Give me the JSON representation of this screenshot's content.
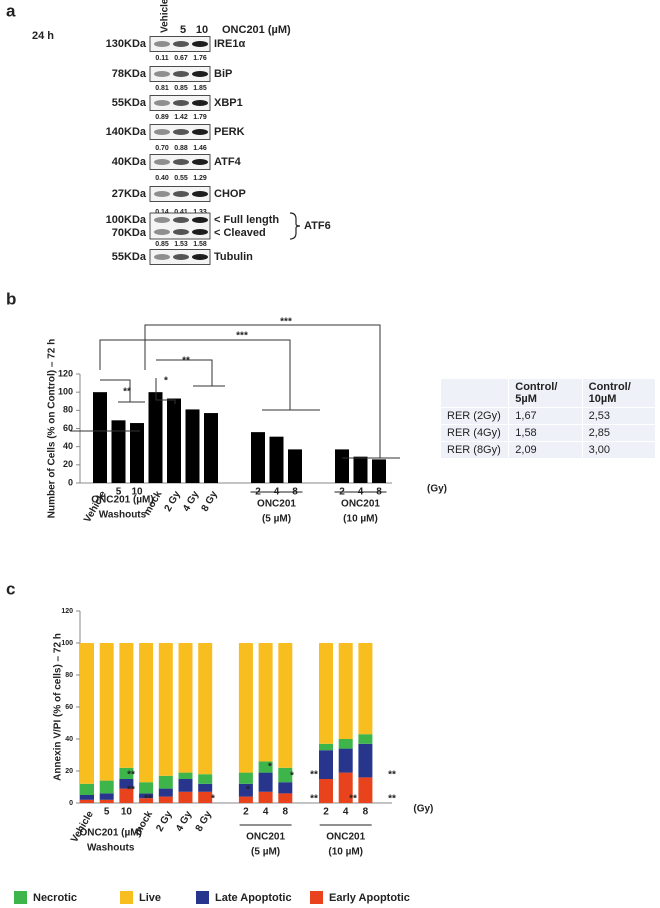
{
  "panel_labels": [
    "a",
    "b",
    "c"
  ],
  "blot": {
    "timepoint": "24 h",
    "lanes": [
      "Vehicle",
      "5",
      "10"
    ],
    "treatment": "ONC201 (µM)",
    "rows": [
      {
        "kda": "130KDa",
        "name": "IRE1α",
        "quant": [
          "0.11",
          "0.67",
          "1.76"
        ]
      },
      {
        "kda": "78KDa",
        "name": "BiP",
        "quant": [
          "0.81",
          "0.85",
          "1.85"
        ]
      },
      {
        "kda": "55KDa",
        "name": "XBP1",
        "quant": [
          "0.89",
          "1.42",
          "1.79"
        ]
      },
      {
        "kda": "140KDa",
        "name": "PERK",
        "quant": [
          "0.70",
          "0.88",
          "1.46"
        ]
      },
      {
        "kda": "40KDa",
        "name": "ATF4",
        "quant": [
          "0.40",
          "0.55",
          "1.29"
        ]
      },
      {
        "kda": "27KDa",
        "name": "CHOP",
        "quant": [
          "0.14",
          "0.41",
          "1.33"
        ]
      },
      {
        "kda": "100KDa",
        "name": "< Full length",
        "kda2": "70KDa",
        "name2": "< Cleaved",
        "group": "ATF6",
        "quant": [
          "0.85",
          "1.53",
          "1.58"
        ]
      },
      {
        "kda": "55KDa",
        "name": "Tubulin"
      }
    ]
  },
  "chart_data": [
    {
      "type": "bar",
      "ylabel": "Number of Cells (% on Control) – 72 h",
      "categories": [
        "Vehicle",
        "5",
        "10",
        "mock",
        "2 Gy",
        "4 Gy",
        "8 Gy",
        "2",
        "4",
        "8",
        "2",
        "4",
        "8"
      ],
      "values": [
        100,
        69,
        66,
        100,
        93,
        81,
        77,
        56,
        51,
        37,
        37,
        29,
        26
      ],
      "color": "#000000",
      "ylim": [
        0,
        120
      ],
      "yticks": [
        0,
        20,
        40,
        60,
        80,
        100,
        120
      ],
      "grid": false,
      "groups": [
        "ONC201 (µM)",
        "Washouts",
        "ONC201",
        "(5 µM)",
        "ONC201",
        "(10 µM)"
      ],
      "xunit": "(Gy)",
      "annotations": [
        "**",
        "*",
        "**",
        "***",
        "***"
      ]
    },
    {
      "type": "stacked_bar",
      "ylabel": "Annexin V/PI (% of cells) – 72 h",
      "categories": [
        "Vehicle",
        "5",
        "10",
        "mock",
        "2 Gy",
        "4 Gy",
        "8 Gy",
        "2",
        "4",
        "8",
        "2",
        "4",
        "8"
      ],
      "series": [
        {
          "name": "Early Apoptotic",
          "color": "#e8431c",
          "values": [
            2,
            2,
            9,
            3,
            4,
            7,
            7,
            4,
            7,
            6,
            15,
            19,
            16
          ]
        },
        {
          "name": "Late Apoptotic",
          "color": "#27368c",
          "values": [
            3,
            4,
            6,
            3,
            5,
            8,
            5,
            8,
            12,
            7,
            18,
            15,
            21
          ]
        },
        {
          "name": "Necrotic",
          "color": "#3db54a",
          "values": [
            7,
            8,
            7,
            7,
            8,
            4,
            6,
            7,
            7,
            9,
            4,
            6,
            6
          ]
        },
        {
          "name": "Live",
          "color": "#f8bd1e",
          "values": [
            88,
            86,
            78,
            87,
            83,
            81,
            82,
            81,
            74,
            78,
            63,
            60,
            57
          ]
        }
      ],
      "ylim": [
        0,
        120
      ],
      "yticks": [
        0,
        20,
        40,
        60,
        80,
        100,
        120
      ],
      "grid": false,
      "groups": [
        "ONC201 (µM)",
        "Washouts",
        "ONC201",
        "(5 µM)",
        "ONC201",
        "(10 µM)"
      ],
      "xunit": "(Gy)",
      "annotations": [
        "**",
        "**",
        "**",
        "*",
        "*",
        "*",
        "*",
        "**",
        "**",
        "**",
        "**",
        "**"
      ]
    }
  ],
  "table": {
    "header": [
      "Control/ 5µM",
      "Control/ 10µM"
    ],
    "rows": [
      [
        "RER (2Gy)",
        "1,67",
        "2,53"
      ],
      [
        "RER (4Gy)",
        "1,58",
        "2,85"
      ],
      [
        "RER (8Gy)",
        "2,09",
        "3,00"
      ]
    ]
  }
}
